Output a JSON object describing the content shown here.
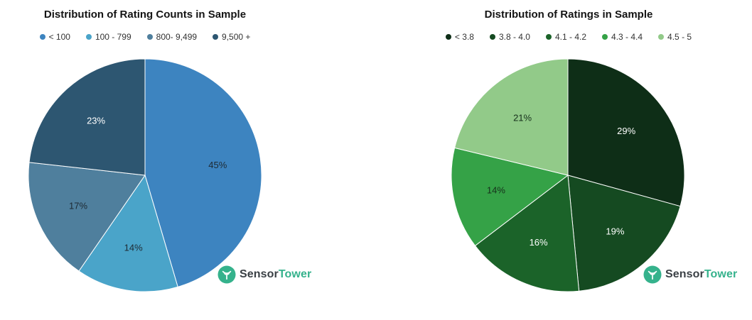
{
  "brand": {
    "bold": "Sensor",
    "accent": "Tower",
    "accent_color": "#35b28c",
    "bold_color": "#3a4045"
  },
  "chart_data": [
    {
      "type": "pie",
      "title": "Distribution of Rating Counts in Sample",
      "legend_position": "top",
      "direction": "clockwise",
      "start_angle_deg": 0,
      "data_labels": "percent-inside",
      "slices": [
        {
          "label": "< 100",
          "value_pct": 45,
          "display": "45%",
          "color": "#3d84c0",
          "label_color": "#1e2a33"
        },
        {
          "label": "100 - 799",
          "value_pct": 14,
          "display": "14%",
          "color": "#4aa4c9",
          "label_color": "#1e2a33"
        },
        {
          "label": "800- 9,499",
          "value_pct": 17,
          "display": "17%",
          "color": "#4f7f9d",
          "label_color": "#1e2a33"
        },
        {
          "label": "9,500 +",
          "value_pct": 23,
          "display": "23%",
          "color": "#2d5671",
          "label_color": "#ffffff"
        }
      ]
    },
    {
      "type": "pie",
      "title": "Distribution of Ratings in Sample",
      "legend_position": "top",
      "direction": "clockwise",
      "start_angle_deg": 0,
      "data_labels": "percent-inside",
      "slices": [
        {
          "label": "< 3.8",
          "value_pct": 29,
          "display": "29%",
          "color": "#0e2e17",
          "label_color": "#ffffff"
        },
        {
          "label": "3.8 - 4.0",
          "value_pct": 19,
          "display": "19%",
          "color": "#154a21",
          "label_color": "#ffffff"
        },
        {
          "label": "4.1 - 4.2",
          "value_pct": 16,
          "display": "16%",
          "color": "#1b6329",
          "label_color": "#ffffff"
        },
        {
          "label": "4.3 - 4.4",
          "value_pct": 14,
          "display": "14%",
          "color": "#35a247",
          "label_color": "#16301b"
        },
        {
          "label": "4.5 - 5",
          "value_pct": 21,
          "display": "21%",
          "color": "#92ca89",
          "label_color": "#16301b"
        }
      ]
    }
  ]
}
